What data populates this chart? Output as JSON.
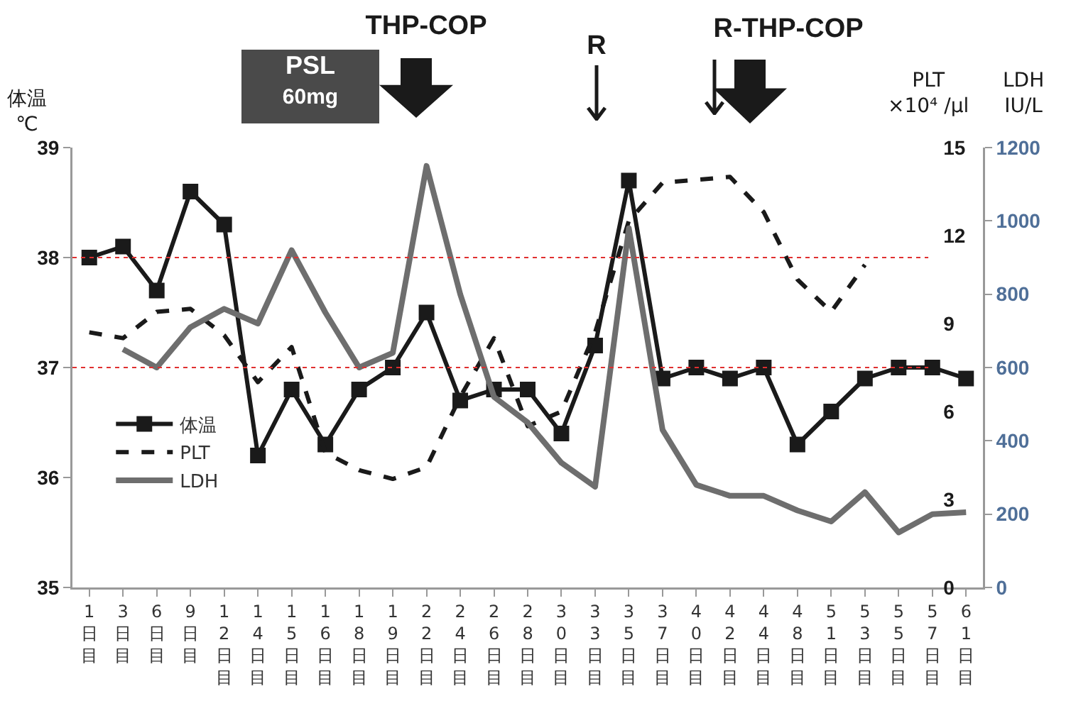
{
  "chart_data": {
    "type": "line",
    "categories": [
      "1日目",
      "3日目",
      "6日目",
      "9日目",
      "12日目",
      "14日目",
      "15日目",
      "16日目",
      "18日目",
      "19日目",
      "22日目",
      "24日目",
      "26日目",
      "28日目",
      "30日目",
      "33日目",
      "35日目",
      "37日目",
      "40日目",
      "42日目",
      "44日目",
      "48日目",
      "51日目",
      "53日目",
      "55日目",
      "57日目",
      "61日目"
    ],
    "series": [
      {
        "name": "体温",
        "axis": "y",
        "color": "#1a1a1a",
        "marker": "square",
        "line_style": "solid",
        "values": [
          38.0,
          38.1,
          37.7,
          38.6,
          38.3,
          36.2,
          36.8,
          36.3,
          36.8,
          37.0,
          37.5,
          36.7,
          36.8,
          36.8,
          36.4,
          37.2,
          38.7,
          36.9,
          37.0,
          36.9,
          37.0,
          36.3,
          36.6,
          36.9,
          37.0,
          37.0,
          36.9
        ]
      },
      {
        "name": "PLT",
        "axis": "y2",
        "color": "#1a1a1a",
        "marker": "none",
        "line_style": "dashed",
        "values": [
          8.7,
          8.5,
          9.4,
          9.5,
          8.6,
          7.0,
          8.2,
          4.6,
          4.0,
          3.7,
          4.1,
          6.5,
          8.5,
          5.5,
          6.0,
          8.7,
          12.5,
          13.8,
          13.9,
          14.0,
          12.8,
          10.5,
          9.4,
          11.0,
          null,
          null,
          null
        ]
      },
      {
        "name": "LDH",
        "axis": "y3",
        "color": "#6e6e6e",
        "marker": "none",
        "line_style": "solid",
        "values": [
          null,
          650,
          600,
          710,
          760,
          720,
          920,
          750,
          600,
          640,
          1150,
          800,
          520,
          450,
          340,
          275,
          980,
          430,
          280,
          250,
          250,
          210,
          180,
          260,
          150,
          200,
          205
        ]
      }
    ],
    "ylabel": "体温\n℃",
    "y2label": "PLT\n×10⁴ /μl",
    "y3label": "LDH\nIU/L",
    "ylim": [
      35,
      39
    ],
    "yticks": [
      35,
      36,
      37,
      38,
      39
    ],
    "y2lim": [
      0,
      15
    ],
    "y2ticks": [
      0,
      3,
      6,
      9,
      12,
      15
    ],
    "y3lim": [
      0,
      1200
    ],
    "y3ticks": [
      0,
      200,
      400,
      600,
      800,
      1000,
      1200
    ],
    "ref_lines": [
      {
        "axis": "y",
        "value": 38,
        "color": "#e03030",
        "line_style": "dotted"
      },
      {
        "axis": "y",
        "value": 37,
        "color": "#e03030",
        "line_style": "dotted"
      }
    ],
    "annotations": [
      "PSL",
      "60mg",
      "THP-COP",
      "R",
      "R-THP-COP"
    ],
    "legend": "left"
  }
}
